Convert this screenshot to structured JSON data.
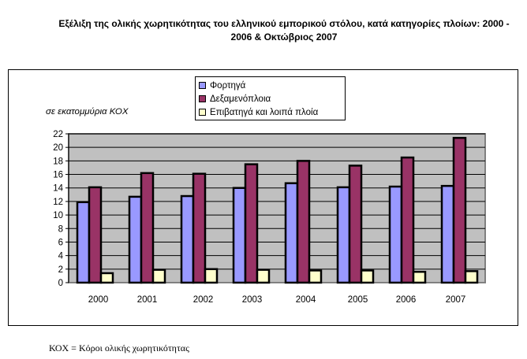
{
  "chart_data": {
    "type": "bar",
    "title": "Εξέλιξη της ολικής χωρητικότητας του ελληνικού εμπορικού στόλου, κατά κατηγορίες πλοίων: 2000 - 2006 & Οκτώβριος 2007",
    "ylabel": "σε εκατομμύρια ΚΟΧ",
    "xlabel": "",
    "categories": [
      "2000",
      "2001",
      "2002",
      "2003",
      "2004",
      "2005",
      "2006",
      "2007"
    ],
    "ylim": [
      0,
      22
    ],
    "yticks": [
      0,
      2,
      4,
      6,
      8,
      10,
      12,
      14,
      16,
      18,
      20,
      22
    ],
    "grid": true,
    "legend_position": "top-center",
    "series": [
      {
        "name": "Φορτηγά",
        "color": "#9999ff",
        "values": [
          11.9,
          12.7,
          12.8,
          14.0,
          14.7,
          14.1,
          14.2,
          14.3
        ]
      },
      {
        "name": "Δεξαμενόπλοια",
        "color": "#993366",
        "values": [
          14.1,
          16.2,
          16.1,
          17.5,
          18.0,
          17.3,
          18.5,
          21.4
        ]
      },
      {
        "name": "Επιβατηγά και λοιπά πλοία",
        "color": "#ffffcc",
        "values": [
          1.4,
          1.9,
          2.0,
          1.9,
          1.8,
          1.8,
          1.6,
          1.7
        ]
      }
    ]
  },
  "footnote": "ΚΟΧ  = Κόροι ολικής χωρητικότητας"
}
